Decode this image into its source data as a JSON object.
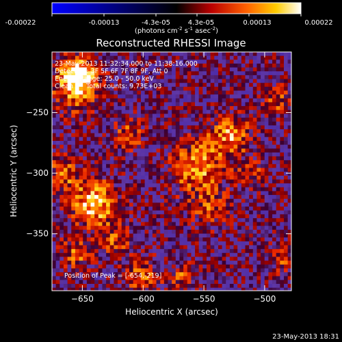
{
  "colorbar": {
    "ticks": [
      "-0.00022",
      "-0.00013",
      "-4.3e-05",
      "4.3e-05",
      "0.00013",
      "0.00022"
    ],
    "unit_base": "(photons cm",
    "unit_sup1": "-2",
    "unit_mid": " s",
    "unit_sup2": "-1",
    "unit_end": " asec",
    "unit_sup3": "-2",
    "unit_close": ")"
  },
  "chart_data": {
    "type": "heatmap",
    "title": "Reconstructed RHESSI Image",
    "xlabel": "Heliocentric X (arcsec)",
    "ylabel": "Heliocentric Y (arcsec)",
    "xlim": [
      -675,
      -478
    ],
    "ylim": [
      -397,
      -200
    ],
    "x_ticks": [
      -650,
      -600,
      -550,
      -500
    ],
    "y_ticks": [
      -250,
      -300,
      -350
    ],
    "x_tick_labels": [
      "−650",
      "−600",
      "−550",
      "−500"
    ],
    "y_tick_labels": [
      "−250",
      "−300",
      "−350"
    ],
    "grid": false,
    "bright_sources": [
      {
        "x": -654,
        "y": -219,
        "peak": 0.00022,
        "sigma": 9
      },
      {
        "x": -640,
        "y": -325,
        "peak": 0.0002,
        "sigma": 13
      },
      {
        "x": -555,
        "y": -295,
        "peak": 0.00016,
        "sigma": 16
      },
      {
        "x": -528,
        "y": -268,
        "peak": 0.00015,
        "sigma": 12
      },
      {
        "x": -655,
        "y": -230,
        "peak": 0.00013,
        "sigma": 15
      },
      {
        "x": -612,
        "y": -268,
        "peak": 0.00011,
        "sigma": 9
      },
      {
        "x": -665,
        "y": -300,
        "peak": 0.00012,
        "sigma": 10
      },
      {
        "x": -622,
        "y": -355,
        "peak": 0.00011,
        "sigma": 9
      },
      {
        "x": -545,
        "y": -330,
        "peak": 0.0001,
        "sigma": 10
      },
      {
        "x": -655,
        "y": -365,
        "peak": 0.00012,
        "sigma": 9
      },
      {
        "x": -600,
        "y": -385,
        "peak": 0.00012,
        "sigma": 10
      },
      {
        "x": -568,
        "y": -385,
        "peak": 0.0001,
        "sigma": 8
      },
      {
        "x": -490,
        "y": -240,
        "peak": 0.00011,
        "sigma": 8
      },
      {
        "x": -485,
        "y": -370,
        "peak": 9e-05,
        "sigma": 8
      },
      {
        "x": -510,
        "y": -300,
        "peak": 8e-05,
        "sigma": 8
      }
    ],
    "annotations": {
      "line1": "23-May-2013 11:32:34.000 to 11:38:16.000",
      "line2": "Detectors: 3F 5F 6F 7F 8F 9F, Att 0",
      "line3": "Energy Range: 25.0 - 50.0 keV",
      "line4_a": "Clean",
      "line4_b": "Total counts: 9.73E+03",
      "peak": "Position of Peak = [-654,-219]"
    }
  },
  "timestamp": "23-May-2013 18:31"
}
